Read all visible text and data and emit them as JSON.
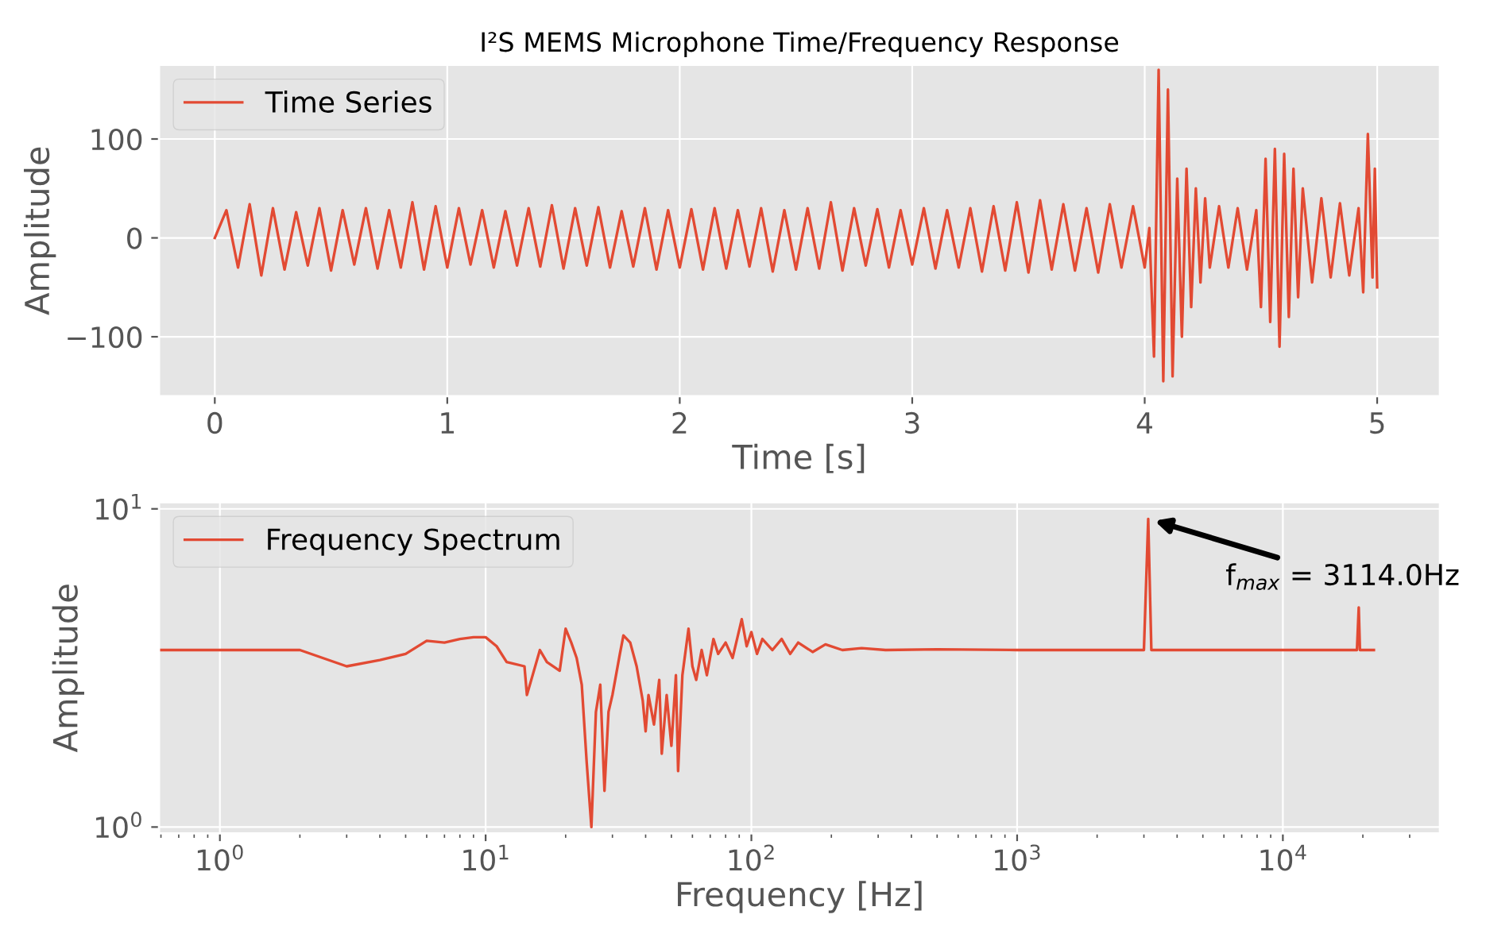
{
  "chart_data": [
    {
      "type": "line",
      "title": "I²S MEMS Microphone Time/Frequency Response",
      "xlabel": "Time [s]",
      "ylabel": "Amplitude",
      "legend": "top left",
      "grid": true,
      "xlim": [
        -0.24,
        5.27
      ],
      "ylim": [
        -160,
        175
      ],
      "xticks": [
        0,
        1,
        2,
        3,
        4,
        5
      ],
      "yticks": [
        {
          "value": -100,
          "label": "−100"
        },
        0,
        100
      ],
      "series": [
        {
          "name": "Time Series",
          "color": "#e24a33",
          "x": [
            0,
            0.05,
            0.1,
            0.15,
            0.2,
            0.25,
            0.3,
            0.35,
            0.4,
            0.45,
            0.5,
            0.55,
            0.6,
            0.65,
            0.7,
            0.75,
            0.8,
            0.85,
            0.9,
            0.95,
            1.0,
            1.05,
            1.1,
            1.15,
            1.2,
            1.25,
            1.3,
            1.35,
            1.4,
            1.45,
            1.5,
            1.55,
            1.6,
            1.65,
            1.7,
            1.75,
            1.8,
            1.85,
            1.9,
            1.95,
            2.0,
            2.05,
            2.1,
            2.15,
            2.2,
            2.25,
            2.3,
            2.35,
            2.4,
            2.45,
            2.5,
            2.55,
            2.6,
            2.65,
            2.7,
            2.75,
            2.8,
            2.85,
            2.9,
            2.95,
            3.0,
            3.05,
            3.1,
            3.15,
            3.2,
            3.25,
            3.3,
            3.35,
            3.4,
            3.45,
            3.5,
            3.55,
            3.6,
            3.65,
            3.7,
            3.75,
            3.8,
            3.85,
            3.9,
            3.95,
            4.0,
            4.02,
            4.04,
            4.06,
            4.08,
            4.1,
            4.12,
            4.14,
            4.16,
            4.18,
            4.2,
            4.22,
            4.24,
            4.26,
            4.28,
            4.32,
            4.36,
            4.4,
            4.44,
            4.48,
            4.5,
            4.52,
            4.54,
            4.56,
            4.58,
            4.6,
            4.62,
            4.64,
            4.66,
            4.68,
            4.72,
            4.76,
            4.8,
            4.84,
            4.88,
            4.92,
            4.94,
            4.96,
            4.98,
            4.99,
            5.0
          ],
          "values": [
            0,
            28,
            -30,
            34,
            -38,
            30,
            -32,
            26,
            -28,
            30,
            -33,
            28,
            -27,
            30,
            -31,
            28,
            -30,
            36,
            -32,
            32,
            -30,
            30,
            -27,
            28,
            -30,
            27,
            -28,
            30,
            -29,
            33,
            -31,
            30,
            -28,
            31,
            -30,
            27,
            -29,
            30,
            -32,
            28,
            -30,
            29,
            -32,
            30,
            -31,
            28,
            -29,
            30,
            -34,
            28,
            -32,
            30,
            -31,
            36,
            -33,
            30,
            -28,
            29,
            -30,
            28,
            -27,
            30,
            -31,
            28,
            -30,
            30,
            -34,
            32,
            -33,
            36,
            -35,
            38,
            -32,
            34,
            -33,
            30,
            -35,
            34,
            -30,
            32,
            -30,
            10,
            -120,
            170,
            -145,
            150,
            -140,
            60,
            -100,
            70,
            -70,
            50,
            -45,
            40,
            -30,
            32,
            -30,
            30,
            -32,
            28,
            -70,
            80,
            -85,
            90,
            -110,
            85,
            -80,
            70,
            -60,
            50,
            -45,
            40,
            -40,
            35,
            -38,
            30,
            -55,
            105,
            -40,
            70,
            -50
          ]
        }
      ]
    },
    {
      "type": "line",
      "xlabel": "Frequency [Hz]",
      "ylabel": "Amplitude",
      "legend": "top left",
      "grid": true,
      "log": "xy",
      "xlim": [
        0.59,
        39000
      ],
      "ylim": [
        0.955,
        10.5
      ],
      "xticks": [
        {
          "value": 1,
          "label": "10$^{0}$"
        },
        {
          "value": 10,
          "label": "10$^{1}$"
        },
        {
          "value": 100,
          "label": "10$^{2}$"
        },
        {
          "value": 1000,
          "label": "10$^{3}$"
        },
        {
          "value": 10000,
          "label": "10$^{4}$"
        }
      ],
      "yticks": [
        {
          "value": 1,
          "label": "10$^{0}$"
        },
        {
          "value": 10,
          "label": "10$^{1}$"
        }
      ],
      "annotations": [
        {
          "text": "f$_{max}$ = 3114.0Hz",
          "x": 3114,
          "y": 9.3
        }
      ],
      "series": [
        {
          "name": "Frequency Spectrum",
          "color": "#e24a33",
          "x": [
            0.6,
            1,
            2,
            3,
            4,
            5,
            6,
            7,
            8,
            9,
            10,
            11,
            12,
            14,
            14.3,
            16,
            17,
            19,
            20,
            21,
            22,
            23,
            24,
            25,
            26,
            27,
            28,
            29,
            30,
            32,
            33,
            35,
            37,
            39,
            40,
            41,
            43,
            45,
            46,
            48,
            50,
            52,
            53,
            55,
            58,
            60,
            62,
            65,
            68,
            72,
            75,
            80,
            85,
            92,
            96,
            100,
            105,
            110,
            120,
            130,
            140,
            150,
            170,
            190,
            220,
            260,
            320,
            500,
            1000,
            3000,
            3114,
            3200,
            10000,
            19000,
            19300,
            19500,
            22000
          ],
          "values": [
            3.6,
            3.6,
            3.6,
            3.2,
            3.35,
            3.5,
            3.85,
            3.8,
            3.9,
            3.95,
            3.95,
            3.7,
            3.3,
            3.2,
            2.6,
            3.6,
            3.3,
            3.1,
            4.2,
            3.8,
            3.4,
            2.8,
            1.6,
            1.0,
            2.3,
            2.8,
            1.3,
            2.3,
            2.6,
            3.5,
            4.0,
            3.8,
            3.2,
            2.5,
            2.0,
            2.6,
            2.1,
            2.9,
            1.7,
            2.6,
            1.8,
            3.0,
            1.5,
            3.0,
            4.2,
            3.2,
            2.9,
            3.6,
            3.0,
            3.9,
            3.5,
            3.8,
            3.4,
            4.5,
            3.7,
            4.1,
            3.5,
            3.9,
            3.6,
            3.9,
            3.5,
            3.8,
            3.55,
            3.75,
            3.6,
            3.65,
            3.6,
            3.62,
            3.6,
            3.6,
            9.3,
            3.6,
            3.6,
            3.6,
            4.9,
            3.6,
            3.6
          ]
        }
      ]
    }
  ]
}
